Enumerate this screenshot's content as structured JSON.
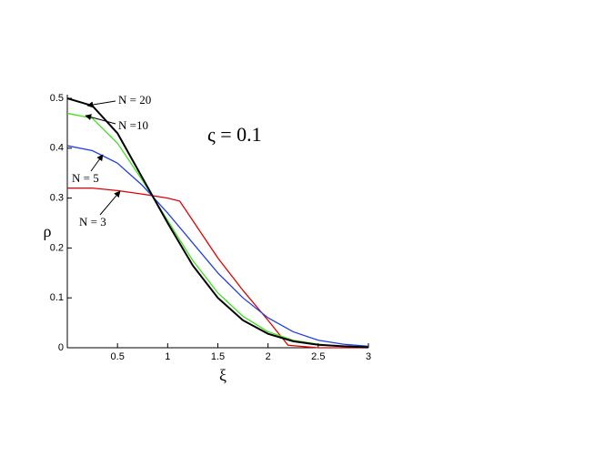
{
  "chart_data": {
    "type": "line",
    "x_label": "ξ",
    "y_label": "ρ",
    "annotations": [
      "N = 20",
      "N =10",
      "N = 5",
      "N = 3",
      "ς = 0.1"
    ],
    "xlim": [
      0,
      3
    ],
    "ylim": [
      0,
      0.5
    ],
    "xticks": [
      0.5,
      1,
      1.5,
      2,
      2.5,
      3
    ],
    "yticks": [
      0,
      0.1,
      0.2,
      0.3,
      0.4,
      0.5
    ],
    "series": [
      {
        "name": "N = 3",
        "color": "#e00000",
        "x": [
          0,
          0.25,
          0.5,
          0.75,
          1,
          1.12,
          1.25,
          1.5,
          1.75,
          2,
          2.2,
          2.5,
          3
        ],
        "values": [
          0.32,
          0.32,
          0.315,
          0.308,
          0.3,
          0.294,
          0.255,
          0.18,
          0.115,
          0.055,
          0.005,
          0,
          0
        ]
      },
      {
        "name": "N = 5",
        "color": "#2040e0",
        "x": [
          0,
          0.25,
          0.5,
          0.75,
          1,
          1.25,
          1.5,
          1.75,
          2,
          2.25,
          2.5,
          2.75,
          3
        ],
        "values": [
          0.405,
          0.395,
          0.37,
          0.325,
          0.27,
          0.21,
          0.15,
          0.1,
          0.06,
          0.032,
          0.015,
          0.007,
          0.003
        ]
      },
      {
        "name": "N =10",
        "color": "#40e020",
        "x": [
          0,
          0.25,
          0.5,
          0.75,
          1,
          1.25,
          1.5,
          1.75,
          2,
          2.25,
          2.5,
          2.75,
          3
        ],
        "values": [
          0.47,
          0.46,
          0.41,
          0.335,
          0.255,
          0.175,
          0.11,
          0.063,
          0.032,
          0.015,
          0.007,
          0.003,
          0.001
        ]
      },
      {
        "name": "N = 20",
        "color": "#000000",
        "x": [
          0,
          0.25,
          0.5,
          0.75,
          1,
          1.25,
          1.5,
          1.75,
          2,
          2.25,
          2.5,
          2.75,
          3
        ],
        "values": [
          0.5,
          0.485,
          0.43,
          0.34,
          0.25,
          0.165,
          0.1,
          0.055,
          0.028,
          0.013,
          0.006,
          0.003,
          0.001
        ]
      }
    ]
  }
}
